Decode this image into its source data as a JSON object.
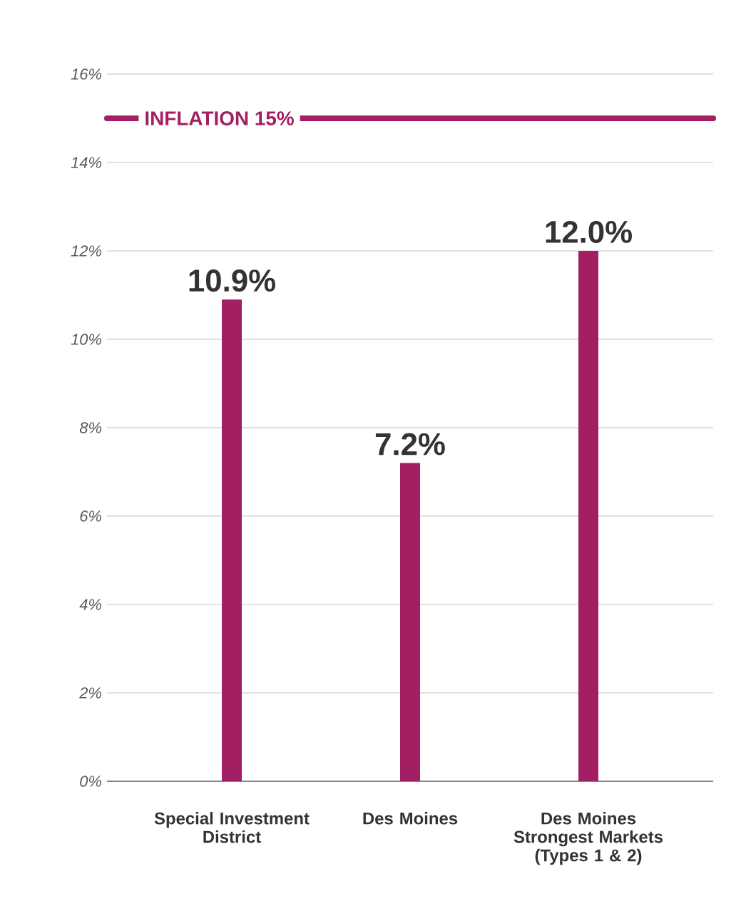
{
  "chart_data": {
    "type": "bar",
    "categories": [
      "Special Investment District",
      "Des Moines",
      "Des Moines Strongest Markets (Types 1 & 2)"
    ],
    "values": [
      10.9,
      7.2,
      12.0
    ],
    "value_labels": [
      "10.9%",
      "7.2%",
      "12.0%"
    ],
    "color": "#a31f63",
    "ylim": [
      0,
      16
    ],
    "yticks": [
      {
        "value": 0,
        "label": "0%"
      },
      {
        "value": 2,
        "label": "2%"
      },
      {
        "value": 4,
        "label": "4%"
      },
      {
        "value": 6,
        "label": "6%"
      },
      {
        "value": 8,
        "label": "8%"
      },
      {
        "value": 10,
        "label": "10%"
      },
      {
        "value": 12,
        "label": "12%"
      },
      {
        "value": 14,
        "label": "14%"
      },
      {
        "value": 16,
        "label": "16%"
      }
    ],
    "grid": "y",
    "ref_lines": [
      {
        "axis": "y",
        "value": 15,
        "label": "INFLATION 15%",
        "color": "#a31f63"
      }
    ]
  }
}
